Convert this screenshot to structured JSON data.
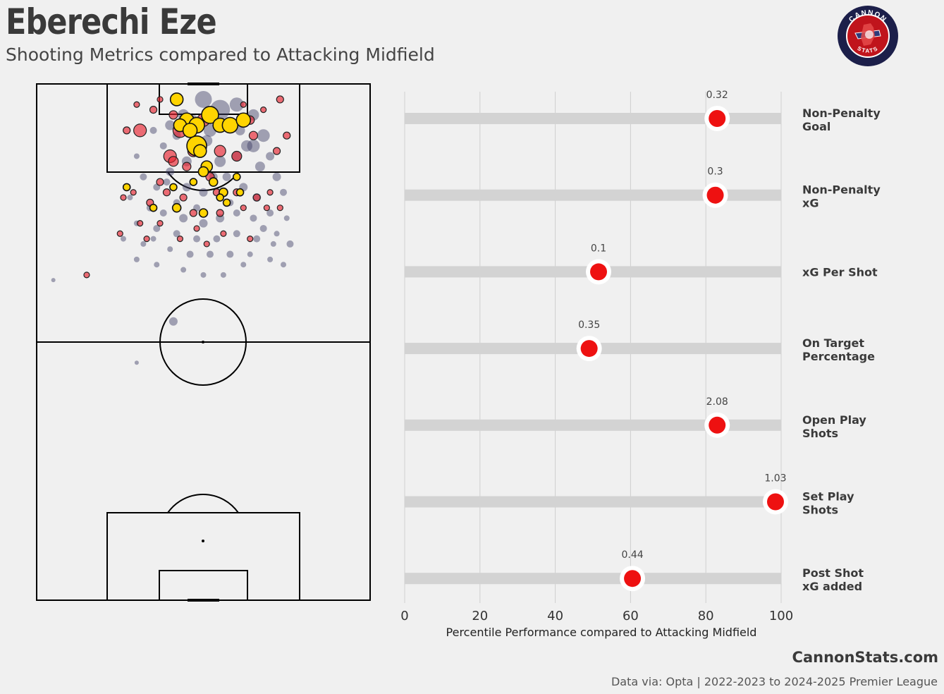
{
  "header": {
    "player_name": "Eberechi Eze",
    "subtitle": "Shooting Metrics compared to Attacking Midfield"
  },
  "logo": {
    "top_text": "CANNON",
    "bottom_text": "STATS",
    "ring_color": "#1c1f4a",
    "fill_color": "#c0141c"
  },
  "footer": {
    "brand": "CannonStats.com",
    "source": "Data via: Opta | 2022-2023 to 2024-2025 Premier League"
  },
  "colors": {
    "background": "#f0f0f0",
    "track": "#d3d3d3",
    "marker": "#ee1111",
    "player_goal": "#ffd400",
    "player_shot": "#e8232f",
    "comparison_shot": "#3c3c64"
  },
  "chart_data": [
    {
      "type": "scatter",
      "pitch": "full-pitch shot map",
      "series": [
        {
          "color": "#3c3c64",
          "points": [
            [
              50,
              3,
              12
            ],
            [
              55,
              5,
              14
            ],
            [
              60,
              4,
              10
            ],
            [
              44,
              6,
              8
            ],
            [
              40,
              8,
              7
            ],
            [
              52,
              9,
              9
            ],
            [
              58,
              8,
              8
            ],
            [
              65,
              6,
              8
            ],
            [
              68,
              10,
              9
            ],
            [
              63,
              12,
              8
            ],
            [
              48,
              12,
              8
            ],
            [
              42,
              10,
              6
            ],
            [
              38,
              12,
              5
            ],
            [
              35,
              9,
              5
            ],
            [
              45,
              15,
              7
            ],
            [
              55,
              15,
              8
            ],
            [
              60,
              14,
              7
            ],
            [
              67,
              16,
              7
            ],
            [
              70,
              14,
              6
            ],
            [
              72,
              18,
              6
            ],
            [
              30,
              14,
              4
            ],
            [
              32,
              18,
              5
            ],
            [
              40,
              17,
              6
            ],
            [
              36,
              20,
              5
            ],
            [
              45,
              20,
              6
            ],
            [
              50,
              21,
              6
            ],
            [
              56,
              21,
              7
            ],
            [
              62,
              20,
              6
            ],
            [
              66,
              22,
              6
            ],
            [
              74,
              21,
              5
            ],
            [
              28,
              22,
              4
            ],
            [
              34,
              24,
              5
            ],
            [
              38,
              25,
              5
            ],
            [
              44,
              26,
              6
            ],
            [
              50,
              27,
              6
            ],
            [
              55,
              26,
              6
            ],
            [
              60,
              25,
              5
            ],
            [
              65,
              26,
              5
            ],
            [
              70,
              25,
              5
            ],
            [
              75,
              26,
              4
            ],
            [
              30,
              27,
              4
            ],
            [
              36,
              28,
              5
            ],
            [
              42,
              29,
              5
            ],
            [
              48,
              30,
              5
            ],
            [
              54,
              30,
              5
            ],
            [
              60,
              29,
              5
            ],
            [
              66,
              30,
              5
            ],
            [
              72,
              29,
              4
            ],
            [
              76,
              31,
              5
            ],
            [
              26,
              30,
              4
            ],
            [
              32,
              31,
              4
            ],
            [
              40,
              32,
              4
            ],
            [
              46,
              33,
              5
            ],
            [
              52,
              33,
              5
            ],
            [
              58,
              33,
              5
            ],
            [
              64,
              33,
              4
            ],
            [
              70,
              34,
              4
            ],
            [
              62,
              35,
              4
            ],
            [
              36,
              35,
              4
            ],
            [
              44,
              36,
              4
            ],
            [
              50,
              37,
              4
            ],
            [
              56,
              37,
              4
            ],
            [
              74,
              35,
              4
            ],
            [
              30,
              34,
              4
            ],
            [
              48,
              24,
              5
            ],
            [
              58,
              23,
              5
            ],
            [
              42,
              23,
              5
            ],
            [
              53,
              18,
              6
            ],
            [
              47,
              7,
              7
            ],
            [
              61,
              9,
              7
            ],
            [
              5,
              38,
              3
            ],
            [
              41,
              46,
              6
            ],
            [
              30,
              54,
              3
            ],
            [
              65,
              12,
              9
            ],
            [
              57,
              18,
              6
            ],
            [
              51,
              11,
              8
            ],
            [
              39,
              19,
              5
            ],
            [
              68,
              28,
              5
            ],
            [
              71,
              31,
              4
            ],
            [
              35,
              30,
              4
            ]
          ]
        },
        {
          "color": "#e8232f",
          "points": [
            [
              43,
              9,
              10
            ],
            [
              50,
              7,
              9
            ],
            [
              58,
              8,
              9
            ],
            [
              31,
              9,
              9
            ],
            [
              40,
              14,
              9
            ],
            [
              55,
              13,
              8
            ],
            [
              35,
              5,
              5
            ],
            [
              41,
              6,
              6
            ],
            [
              64,
              7,
              6
            ],
            [
              73,
              3,
              5
            ],
            [
              65,
              10,
              6
            ],
            [
              72,
              13,
              5
            ],
            [
              75,
              10,
              5
            ],
            [
              52,
              18,
              6
            ],
            [
              44,
              22,
              5
            ],
            [
              60,
              21,
              5
            ],
            [
              66,
              22,
              5
            ],
            [
              39,
              21,
              5
            ],
            [
              29,
              21,
              4
            ],
            [
              34,
              23,
              5
            ],
            [
              47,
              25,
              5
            ],
            [
              55,
              25,
              5
            ],
            [
              62,
              24,
              4
            ],
            [
              69,
              24,
              4
            ],
            [
              73,
              24,
              4
            ],
            [
              48,
              28,
              4
            ],
            [
              56,
              29,
              4
            ],
            [
              31,
              27,
              4
            ],
            [
              26,
              22,
              4
            ],
            [
              37,
              27,
              4
            ],
            [
              27,
              9,
              5
            ],
            [
              30,
              4,
              4
            ],
            [
              37,
              3,
              4
            ],
            [
              62,
              4,
              4
            ],
            [
              68,
              5,
              4
            ],
            [
              25,
              29,
              4
            ],
            [
              33,
              30,
              4
            ],
            [
              43,
              30,
              4
            ],
            [
              15,
              37,
              4
            ],
            [
              41,
              15,
              7
            ],
            [
              45,
              16,
              6
            ],
            [
              54,
              21,
              5
            ],
            [
              37,
              19,
              5
            ],
            [
              51,
              31,
              4
            ],
            [
              64,
              30,
              4
            ],
            [
              70,
              21,
              4
            ],
            [
              47,
              13,
              8
            ],
            [
              60,
              14,
              7
            ]
          ]
        },
        {
          "color": "#ffd400",
          "points": [
            [
              42,
              3,
              9
            ],
            [
              45,
              7,
              10
            ],
            [
              48,
              8,
              11
            ],
            [
              52,
              6,
              12
            ],
            [
              48,
              12,
              14
            ],
            [
              55,
              8,
              10
            ],
            [
              58,
              8,
              11
            ],
            [
              62,
              7,
              10
            ],
            [
              43,
              8,
              9
            ],
            [
              51,
              16,
              8
            ],
            [
              46,
              9,
              10
            ],
            [
              50,
              17,
              7
            ],
            [
              53,
              19,
              6
            ],
            [
              47,
              19,
              5
            ],
            [
              41,
              20,
              5
            ],
            [
              56,
              21,
              6
            ],
            [
              42,
              24,
              6
            ],
            [
              50,
              25,
              6
            ],
            [
              57,
              23,
              5
            ],
            [
              60,
              18,
              5
            ],
            [
              55,
              22,
              5
            ],
            [
              49,
              13,
              9
            ],
            [
              27,
              20,
              5
            ],
            [
              61,
              21,
              5
            ],
            [
              35,
              24,
              5
            ]
          ]
        }
      ]
    },
    {
      "type": "bar",
      "xlabel": "Percentile Performance compared to Attacking Midfield",
      "xlim": [
        0,
        100
      ],
      "xticks": [
        "0",
        "20",
        "40",
        "60",
        "80",
        "100"
      ],
      "grid": true,
      "metrics": [
        {
          "label_line1": "Non-Penalty",
          "label_line2": "Goal",
          "percentile": 83,
          "value_label": "0.32"
        },
        {
          "label_line1": "Non-Penalty",
          "label_line2": "xG",
          "percentile": 82.5,
          "value_label": "0.3"
        },
        {
          "label_line1": "xG Per Shot",
          "label_line2": "",
          "percentile": 51.5,
          "value_label": "0.1"
        },
        {
          "label_line1": "On Target",
          "label_line2": "Percentage",
          "percentile": 49,
          "value_label": "0.35"
        },
        {
          "label_line1": "Open Play",
          "label_line2": "Shots",
          "percentile": 83,
          "value_label": "2.08"
        },
        {
          "label_line1": "Set Play",
          "label_line2": "Shots",
          "percentile": 98.5,
          "value_label": "1.03"
        },
        {
          "label_line1": "Post Shot",
          "label_line2": "xG added",
          "percentile": 60.5,
          "value_label": "0.44"
        }
      ]
    }
  ]
}
